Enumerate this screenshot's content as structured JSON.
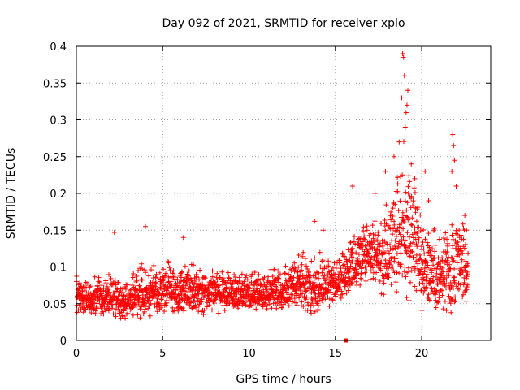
{
  "chart_data": {
    "type": "scatter",
    "title": "Day 092 of 2021, SRMTID for receiver xplo",
    "xlabel": "GPS time / hours",
    "ylabel": "SRMTID / TECUs",
    "xlim": [
      0,
      24
    ],
    "ylim": [
      0,
      0.4
    ],
    "grid": true,
    "marker": "+",
    "color": "#ff0000",
    "x_ticks": [
      0,
      5,
      10,
      15,
      20
    ],
    "x_tick_labels": [
      "0",
      "5",
      "10",
      "15",
      "20"
    ],
    "y_ticks": [
      0,
      0.05,
      0.1,
      0.15,
      0.2,
      0.25,
      0.3,
      0.35,
      0.4
    ],
    "y_tick_labels": [
      "0",
      "0.05",
      "0.1",
      "0.15",
      "0.2",
      "0.25",
      "0.3",
      "0.35",
      "0.4"
    ],
    "envelope": {
      "hours": [
        0,
        1,
        2,
        3,
        4,
        5,
        6,
        7,
        8,
        9,
        10,
        11,
        12,
        13,
        14,
        15,
        16,
        17,
        18,
        19,
        20,
        21,
        22,
        22.7
      ],
      "typical_min": [
        0.03,
        0.03,
        0.03,
        0.025,
        0.03,
        0.035,
        0.035,
        0.03,
        0.035,
        0.035,
        0.04,
        0.04,
        0.035,
        0.03,
        0.03,
        0.045,
        0.06,
        0.07,
        0.05,
        0.05,
        0.04,
        0.03,
        0.03,
        0.04
      ],
      "typical_max": [
        0.1,
        0.09,
        0.1,
        0.09,
        0.11,
        0.11,
        0.12,
        0.11,
        0.11,
        0.1,
        0.1,
        0.1,
        0.11,
        0.14,
        0.13,
        0.12,
        0.16,
        0.18,
        0.2,
        0.3,
        0.2,
        0.15,
        0.2,
        0.16
      ]
    },
    "spikes": [
      {
        "x": 2.2,
        "y": 0.147
      },
      {
        "x": 4.0,
        "y": 0.155
      },
      {
        "x": 6.2,
        "y": 0.14
      },
      {
        "x": 13.8,
        "y": 0.162
      },
      {
        "x": 14.3,
        "y": 0.15
      },
      {
        "x": 16.0,
        "y": 0.21
      },
      {
        "x": 17.3,
        "y": 0.2
      },
      {
        "x": 17.9,
        "y": 0.23
      },
      {
        "x": 18.4,
        "y": 0.25
      },
      {
        "x": 18.9,
        "y": 0.39
      },
      {
        "x": 18.95,
        "y": 0.385
      },
      {
        "x": 19.0,
        "y": 0.36
      },
      {
        "x": 18.85,
        "y": 0.33
      },
      {
        "x": 19.1,
        "y": 0.31
      },
      {
        "x": 19.05,
        "y": 0.29
      },
      {
        "x": 19.2,
        "y": 0.34
      },
      {
        "x": 19.15,
        "y": 0.32
      },
      {
        "x": 18.7,
        "y": 0.27
      },
      {
        "x": 19.4,
        "y": 0.24
      },
      {
        "x": 19.6,
        "y": 0.22
      },
      {
        "x": 20.2,
        "y": 0.23
      },
      {
        "x": 20.4,
        "y": 0.19
      },
      {
        "x": 21.8,
        "y": 0.28
      },
      {
        "x": 21.85,
        "y": 0.265
      },
      {
        "x": 21.9,
        "y": 0.245
      },
      {
        "x": 21.75,
        "y": 0.23
      },
      {
        "x": 22.0,
        "y": 0.21
      },
      {
        "x": 22.5,
        "y": 0.17
      },
      {
        "x": 22.6,
        "y": 0.15
      }
    ],
    "zero_marker": {
      "x": 15.6,
      "y": 0
    }
  }
}
